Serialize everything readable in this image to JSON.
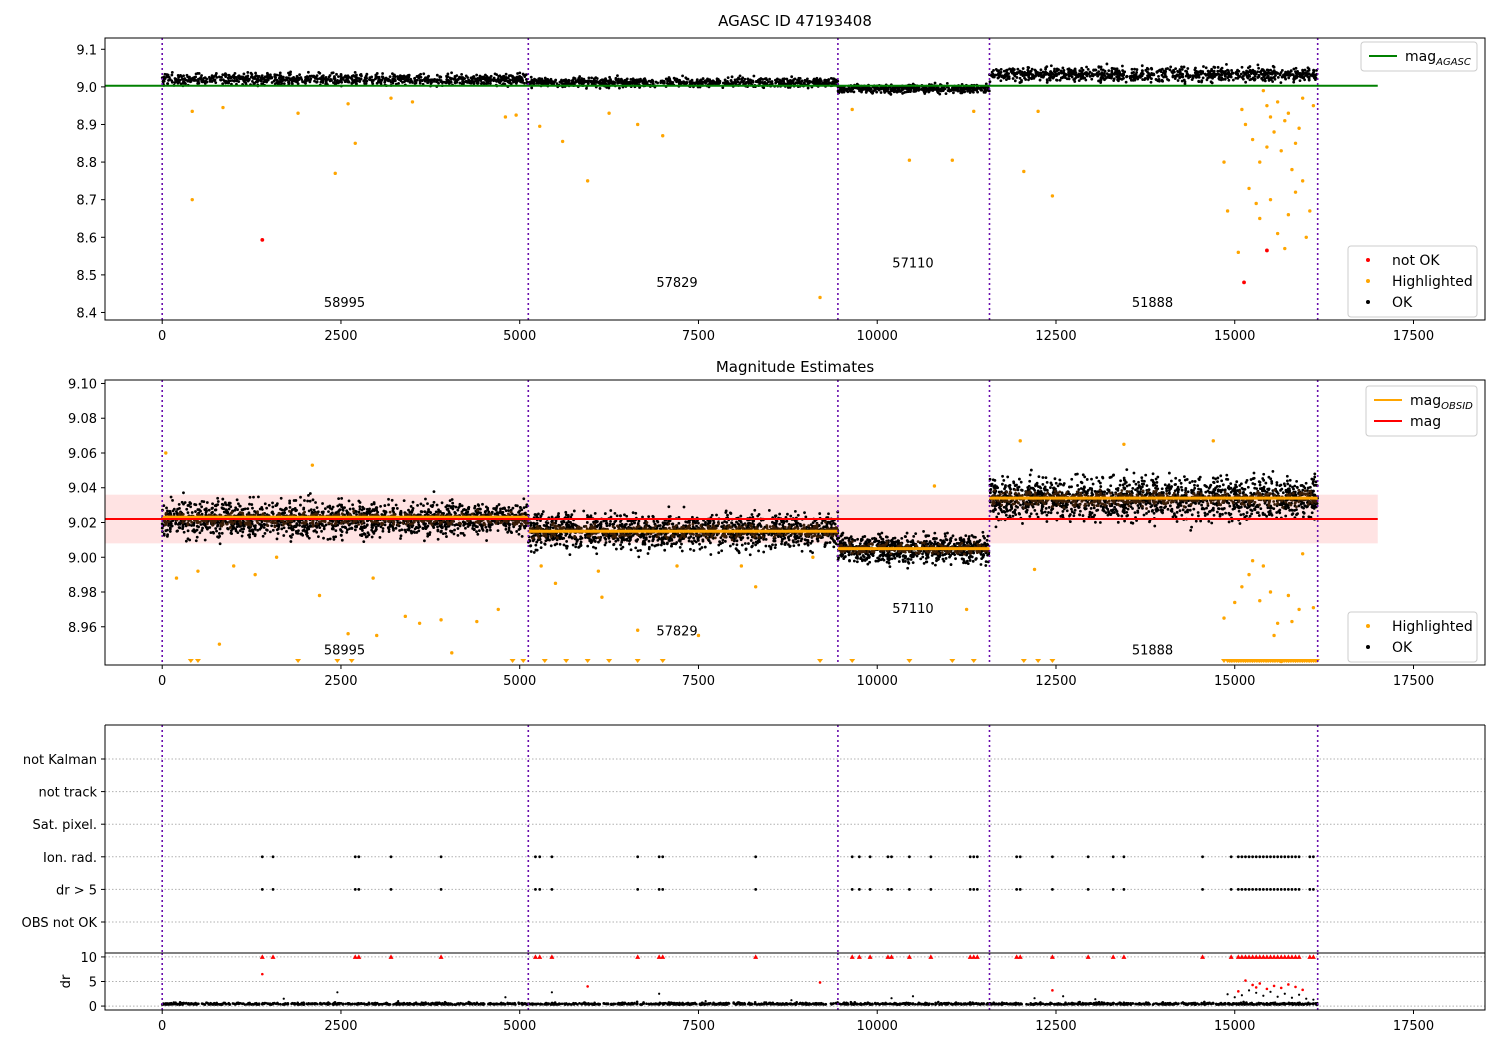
{
  "figure": {
    "colors": {
      "ok": "#000000",
      "highlighted": "#ffa500",
      "not_ok": "#ff0000",
      "agasc_line": "#008000",
      "obsid_line": "#ffa500",
      "mag_line": "#ff0000",
      "band": "#ffcccc",
      "obsid_sep": "#6a0dad"
    }
  },
  "chart_data": [
    {
      "type": "scatter",
      "title": "AGASC ID 47193408",
      "xlabel": "",
      "ylabel": "",
      "xlim": [
        -800,
        18500
      ],
      "ylim": [
        8.38,
        9.13
      ],
      "x_ticks": [
        0,
        2500,
        5000,
        7500,
        10000,
        12500,
        15000,
        17500
      ],
      "y_ticks": [
        8.4,
        8.5,
        8.6,
        8.7,
        8.8,
        8.9,
        9.0,
        9.1
      ],
      "y_tick_labels": [
        "8.4",
        "8.5",
        "8.6",
        "8.7",
        "8.8",
        "8.9",
        "9.0",
        "9.1"
      ],
      "grid": false,
      "obsid_boundaries": [
        0,
        5120,
        9450,
        11570,
        16160
      ],
      "obsid_labels": [
        {
          "text": "58995",
          "x": 2550,
          "y": 8.415
        },
        {
          "text": "57829",
          "x": 7200,
          "y": 8.468
        },
        {
          "text": "57110",
          "x": 10500,
          "y": 8.52
        },
        {
          "text": "51888",
          "x": 13850,
          "y": 8.415
        }
      ],
      "hlines": [
        {
          "name": "mag_AGASC",
          "y": 9.003,
          "x_range": [
            -800,
            17000
          ]
        }
      ],
      "ok_bands": [
        {
          "x_range": [
            0,
            5120
          ],
          "center": 9.02,
          "spread": 0.016,
          "npts": 900
        },
        {
          "x_range": [
            5120,
            9450
          ],
          "center": 9.012,
          "spread": 0.013,
          "npts": 800
        },
        {
          "x_range": [
            9450,
            11570
          ],
          "center": 8.995,
          "spread": 0.012,
          "npts": 450
        },
        {
          "x_range": [
            11570,
            16160
          ],
          "center": 9.033,
          "spread": 0.02,
          "npts": 900
        }
      ],
      "highlighted_points": [
        [
          420,
          8.935
        ],
        [
          420,
          8.7
        ],
        [
          850,
          8.945
        ],
        [
          1900,
          8.93
        ],
        [
          2420,
          8.77
        ],
        [
          2700,
          8.85
        ],
        [
          2600,
          8.955
        ],
        [
          3200,
          8.97
        ],
        [
          3500,
          8.96
        ],
        [
          4800,
          8.92
        ],
        [
          4950,
          8.925
        ],
        [
          5280,
          8.895
        ],
        [
          5600,
          8.855
        ],
        [
          6250,
          8.93
        ],
        [
          6650,
          8.9
        ],
        [
          7000,
          8.87
        ],
        [
          5950,
          8.75
        ],
        [
          9200,
          8.44
        ],
        [
          9650,
          8.94
        ],
        [
          10450,
          8.805
        ],
        [
          11050,
          8.805
        ],
        [
          11350,
          8.935
        ],
        [
          12050,
          8.775
        ],
        [
          12250,
          8.935
        ],
        [
          12450,
          8.71
        ],
        [
          14850,
          8.8
        ],
        [
          14900,
          8.67
        ],
        [
          15050,
          8.56
        ],
        [
          15200,
          8.73
        ],
        [
          15300,
          8.69
        ],
        [
          15350,
          8.65
        ],
        [
          15450,
          8.95
        ],
        [
          15500,
          8.92
        ],
        [
          15550,
          8.88
        ],
        [
          15600,
          8.61
        ],
        [
          15650,
          8.83
        ],
        [
          15700,
          8.57
        ],
        [
          15750,
          8.93
        ],
        [
          15800,
          8.78
        ],
        [
          15850,
          8.72
        ],
        [
          15900,
          8.89
        ],
        [
          15950,
          8.97
        ],
        [
          16000,
          8.6
        ],
        [
          16050,
          8.67
        ],
        [
          16100,
          8.95
        ],
        [
          15150,
          8.9
        ],
        [
          15250,
          8.86
        ],
        [
          15400,
          8.99
        ],
        [
          15450,
          8.84
        ],
        [
          15600,
          8.96
        ],
        [
          15700,
          8.91
        ],
        [
          15850,
          8.85
        ],
        [
          15950,
          8.75
        ],
        [
          15100,
          8.94
        ],
        [
          15350,
          8.8
        ],
        [
          15500,
          8.7
        ],
        [
          15750,
          8.66
        ]
      ],
      "not_ok_points": [
        [
          1400,
          8.593
        ],
        [
          15130,
          8.48
        ],
        [
          15450,
          8.565
        ]
      ],
      "legend": {
        "position": "lower-right",
        "entries": [
          "not OK",
          "Highlighted",
          "OK"
        ]
      },
      "top_legend": {
        "position": "upper-right",
        "entries": [
          "mag",
          "AGASC"
        ]
      }
    },
    {
      "type": "scatter",
      "title": "Magnitude Estimates",
      "xlabel": "",
      "ylabel": "",
      "xlim": [
        -800,
        18500
      ],
      "ylim": [
        8.938,
        9.102
      ],
      "x_ticks": [
        0,
        2500,
        5000,
        7500,
        10000,
        12500,
        15000,
        17500
      ],
      "y_ticks": [
        8.96,
        8.98,
        9.0,
        9.02,
        9.04,
        9.06,
        9.08,
        9.1
      ],
      "y_tick_labels": [
        "8.96",
        "8.98",
        "9.00",
        "9.02",
        "9.04",
        "9.06",
        "9.08",
        "9.10"
      ],
      "grid": false,
      "obsid_boundaries": [
        0,
        5120,
        9450,
        11570,
        16160
      ],
      "obsid_labels": [
        {
          "text": "58995",
          "x": 2550,
          "y": 8.944
        },
        {
          "text": "57829",
          "x": 7200,
          "y": 8.955
        },
        {
          "text": "57110",
          "x": 10500,
          "y": 8.968
        },
        {
          "text": "51888",
          "x": 13850,
          "y": 8.944
        }
      ],
      "mag": 9.022,
      "mag_band": [
        9.008,
        9.036
      ],
      "mag_obsid": [
        {
          "x_range": [
            0,
            5120
          ],
          "y": 9.023
        },
        {
          "x_range": [
            5120,
            9450
          ],
          "y": 9.015
        },
        {
          "x_range": [
            9450,
            11570
          ],
          "y": 9.005
        },
        {
          "x_range": [
            11570,
            16160
          ],
          "y": 9.034
        }
      ],
      "ok_bands": [
        {
          "x_range": [
            0,
            5120
          ],
          "center": 9.022,
          "spread": 0.011,
          "npts": 1500
        },
        {
          "x_range": [
            5120,
            9450
          ],
          "center": 9.015,
          "spread": 0.011,
          "npts": 1300
        },
        {
          "x_range": [
            9450,
            11570
          ],
          "center": 9.005,
          "spread": 0.009,
          "npts": 700
        },
        {
          "x_range": [
            11570,
            16160
          ],
          "center": 9.034,
          "spread": 0.013,
          "npts": 1500
        }
      ],
      "highlighted_points": [
        [
          50,
          9.06
        ],
        [
          200,
          8.988
        ],
        [
          500,
          8.992
        ],
        [
          800,
          8.95
        ],
        [
          1000,
          8.995
        ],
        [
          1300,
          8.99
        ],
        [
          1600,
          9.0
        ],
        [
          2100,
          9.053
        ],
        [
          2200,
          8.978
        ],
        [
          2600,
          8.956
        ],
        [
          2950,
          8.988
        ],
        [
          3000,
          8.955
        ],
        [
          3400,
          8.966
        ],
        [
          3600,
          8.962
        ],
        [
          3900,
          8.964
        ],
        [
          4050,
          8.945
        ],
        [
          4400,
          8.963
        ],
        [
          4700,
          8.97
        ],
        [
          5300,
          8.995
        ],
        [
          5500,
          8.985
        ],
        [
          6100,
          8.992
        ],
        [
          6150,
          8.977
        ],
        [
          6650,
          8.958
        ],
        [
          7500,
          8.955
        ],
        [
          7200,
          8.995
        ],
        [
          8100,
          8.995
        ],
        [
          8300,
          8.983
        ],
        [
          9100,
          9.0
        ],
        [
          10800,
          9.041
        ],
        [
          11250,
          8.97
        ],
        [
          12000,
          9.067
        ],
        [
          12200,
          8.993
        ],
        [
          13450,
          9.065
        ],
        [
          14700,
          9.067
        ],
        [
          14850,
          8.965
        ],
        [
          15000,
          8.974
        ],
        [
          15100,
          8.983
        ],
        [
          15200,
          8.99
        ],
        [
          15250,
          8.998
        ],
        [
          15350,
          8.975
        ],
        [
          15400,
          8.995
        ],
        [
          15500,
          8.98
        ],
        [
          15550,
          8.955
        ],
        [
          15600,
          8.962
        ],
        [
          15650,
          8.94
        ],
        [
          15750,
          8.978
        ],
        [
          15800,
          8.963
        ],
        [
          15900,
          8.97
        ],
        [
          15950,
          9.002
        ],
        [
          16100,
          8.971
        ]
      ],
      "clipped_low_x": [
        400,
        500,
        1900,
        2450,
        2650,
        4900,
        5050,
        5350,
        5650,
        5950,
        6250,
        6650,
        7000,
        9200,
        9650,
        10450,
        11050,
        11350,
        12050,
        12250,
        12450,
        14850,
        14950,
        15050,
        15150,
        15250,
        15350,
        15450,
        15550,
        15650,
        15750,
        15850,
        15950,
        16050,
        16150
      ],
      "legend": {
        "position": "lower-right",
        "entries": [
          "Highlighted",
          "OK"
        ]
      },
      "top_legend": {
        "position": "upper-right",
        "entries": [
          "mag",
          "OBSID",
          "mag"
        ]
      }
    },
    {
      "type": "scatter",
      "title": "",
      "xlabel": "",
      "ylabel": "",
      "xlim": [
        -800,
        18500
      ],
      "ylim": [
        -0.5,
        6.5
      ],
      "y_categories": [
        "not Kalman",
        "not track",
        "Sat. pixel.",
        "Ion. rad.",
        "dr > 5",
        "OBS not OK"
      ],
      "grid": true,
      "obsid_boundaries": [
        0,
        5120,
        9450,
        11570,
        16160
      ],
      "flag_x": [
        1400,
        1550,
        2700,
        2750,
        3200,
        3900,
        5220,
        5280,
        5450,
        6650,
        6950,
        7000,
        8300,
        9650,
        9750,
        9900,
        10150,
        10200,
        10450,
        10750,
        11300,
        11350,
        11400,
        11950,
        12000,
        12450,
        12950,
        13300,
        13450,
        14550,
        14950,
        15050,
        15100,
        15150,
        15200,
        15250,
        15300,
        15350,
        15400,
        15450,
        15500,
        15550,
        15600,
        15650,
        15700,
        15750,
        15800,
        15850,
        15900,
        16050,
        16100
      ],
      "flag_rows": [
        "Ion. rad.",
        "dr > 5"
      ]
    },
    {
      "type": "scatter",
      "title": "",
      "xlabel": "",
      "ylabel": "dr",
      "xlim": [
        -800,
        18500
      ],
      "ylim": [
        -0.8,
        10.8
      ],
      "y_ticks": [
        0,
        5,
        10
      ],
      "y_tick_labels": [
        "0",
        "5",
        "10"
      ],
      "x_ticks": [
        0,
        2500,
        5000,
        7500,
        10000,
        12500,
        15000,
        17500
      ],
      "grid": true,
      "obsid_boundaries": [
        0,
        5120,
        9450,
        11570,
        16160
      ],
      "clipped_high_x": [
        1400,
        1550,
        2700,
        2750,
        3200,
        3900,
        5220,
        5280,
        5450,
        6650,
        6950,
        7000,
        8300,
        9650,
        9750,
        9900,
        10150,
        10200,
        10450,
        10750,
        11300,
        11350,
        11400,
        11950,
        12000,
        12450,
        12950,
        13300,
        13450,
        14550,
        14950,
        15050,
        15100,
        15150,
        15200,
        15250,
        15300,
        15350,
        15400,
        15450,
        15500,
        15550,
        15600,
        15650,
        15700,
        15750,
        15800,
        15850,
        15900,
        16050,
        16100
      ],
      "red_points": [
        [
          1400,
          6.5
        ],
        [
          5950,
          4.0
        ],
        [
          9200,
          4.8
        ],
        [
          12450,
          3.2
        ],
        [
          15050,
          3.0
        ],
        [
          15150,
          5.2
        ],
        [
          15250,
          4.3
        ],
        [
          15300,
          3.8
        ],
        [
          15350,
          4.6
        ],
        [
          15450,
          3.5
        ],
        [
          15550,
          4.1
        ],
        [
          15650,
          3.7
        ],
        [
          15750,
          4.4
        ],
        [
          15850,
          3.9
        ],
        [
          15950,
          3.3
        ]
      ],
      "black_points": [
        [
          1700,
          1.5
        ],
        [
          2450,
          2.8
        ],
        [
          3300,
          1.0
        ],
        [
          4800,
          1.8
        ],
        [
          5450,
          2.8
        ],
        [
          6950,
          2.5
        ],
        [
          7600,
          1.0
        ],
        [
          8800,
          1.2
        ],
        [
          10200,
          1.6
        ],
        [
          10500,
          2.0
        ],
        [
          12200,
          1.6
        ],
        [
          12600,
          2.0
        ],
        [
          13050,
          1.4
        ],
        [
          14900,
          2.4
        ],
        [
          15000,
          1.8
        ],
        [
          15100,
          2.2
        ],
        [
          15200,
          3.2
        ],
        [
          15300,
          2.7
        ],
        [
          15400,
          2.1
        ],
        [
          15500,
          2.9
        ],
        [
          15600,
          1.9
        ],
        [
          15700,
          2.5
        ],
        [
          15800,
          1.7
        ],
        [
          15900,
          2.3
        ],
        [
          16000,
          1.5
        ],
        [
          16100,
          1.3
        ]
      ],
      "baseline": {
        "x_range": [
          0,
          16160
        ],
        "center": 0.3,
        "spread": 0.35,
        "npts": 1800
      }
    }
  ]
}
